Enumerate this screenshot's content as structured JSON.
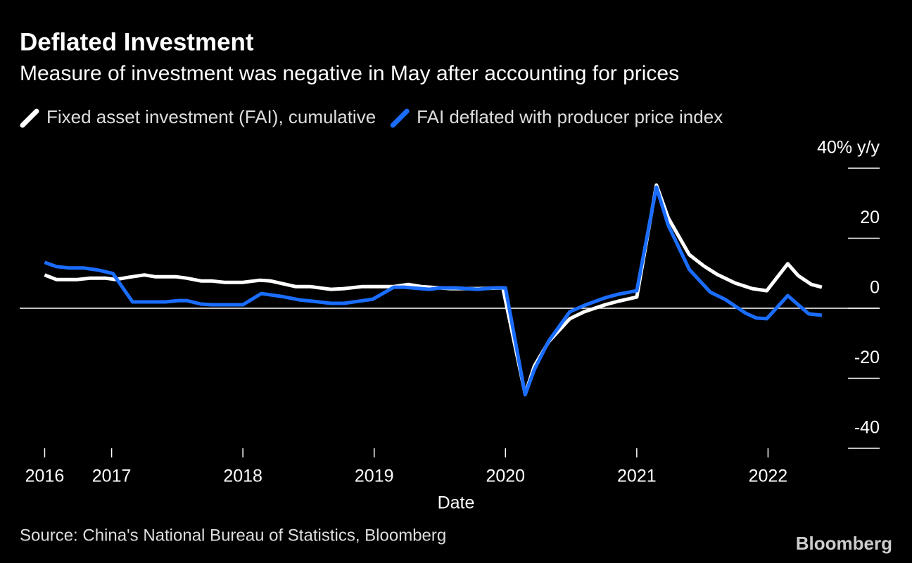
{
  "chart_data": {
    "type": "line",
    "title": "Deflated Investment",
    "subtitle": "Measure of investment was negative in May after accounting for prices",
    "x_label": "Date",
    "source": "Source: China's National Bureau of Statistics, Bloomberg",
    "credit": "Bloomberg",
    "xlim": [
      2016.3,
      2022.85
    ],
    "xticks": [
      {
        "value": 2016.49,
        "label": "2016"
      },
      2017,
      2018,
      2019,
      2020,
      2021,
      2022
    ],
    "ylim": [
      -40,
      40
    ],
    "yticks": [
      {
        "value": 40,
        "label": "40% y/y"
      },
      20,
      0,
      -20,
      -40
    ],
    "series": [
      {
        "name": "Fixed asset investment (FAI), cumulative",
        "color": "#ffffff",
        "x": [
          2016.49,
          2016.58,
          2016.74,
          2016.84,
          2016.95,
          2017.03,
          2017.14,
          2017.25,
          2017.33,
          2017.49,
          2017.57,
          2017.68,
          2017.76,
          2017.86,
          2018.0,
          2018.13,
          2018.21,
          2018.4,
          2018.51,
          2018.67,
          2018.77,
          2018.91,
          2019.15,
          2019.26,
          2019.36,
          2019.58,
          2019.79,
          2019.98,
          2020.15,
          2020.22,
          2020.33,
          2020.49,
          2020.6,
          2020.76,
          2020.86,
          2021.0,
          2021.15,
          2021.24,
          2021.4,
          2021.51,
          2021.61,
          2021.75,
          2021.88,
          2021.99,
          2022.15,
          2022.23,
          2022.33,
          2022.41
        ],
        "values": [
          9.5,
          8.2,
          8.2,
          8.6,
          8.6,
          8.2,
          8.9,
          9.5,
          9,
          9,
          8.6,
          7.8,
          7.8,
          7.4,
          7.4,
          8,
          7.8,
          6.2,
          6.2,
          5.4,
          5.6,
          6.2,
          6.2,
          6.8,
          6.2,
          5.6,
          5.6,
          5.8,
          -24.5,
          -16.5,
          -9.5,
          -3,
          -1,
          1,
          2,
          3.2,
          35.2,
          25.8,
          15.3,
          12.1,
          9.7,
          7.2,
          5.6,
          5,
          12.7,
          9.3,
          6.8,
          6
        ]
      },
      {
        "name": "FAI deflated with producer price index",
        "color": "#1a6dff",
        "x": [
          2016.49,
          2016.58,
          2016.68,
          2016.79,
          2016.9,
          2017.01,
          2017.16,
          2017.27,
          2017.41,
          2017.51,
          2017.57,
          2017.68,
          2017.76,
          2018.0,
          2018.14,
          2018.29,
          2018.43,
          2018.53,
          2018.67,
          2018.77,
          2018.99,
          2019.15,
          2019.23,
          2019.42,
          2019.5,
          2019.63,
          2019.79,
          2019.9,
          2020.0,
          2020.15,
          2020.22,
          2020.33,
          2020.49,
          2020.6,
          2020.76,
          2020.86,
          2021.0,
          2021.15,
          2021.24,
          2021.4,
          2021.56,
          2021.67,
          2021.83,
          2021.91,
          2021.99,
          2022.15,
          2022.31,
          2022.41
        ],
        "values": [
          13.1,
          11.9,
          11.5,
          11.5,
          10.9,
          9.9,
          1.8,
          1.8,
          1.8,
          2.2,
          2.2,
          1.2,
          1,
          1,
          4.2,
          3.4,
          2.4,
          2,
          1.4,
          1.4,
          2.6,
          6,
          6,
          5.4,
          5.8,
          5.8,
          5.4,
          5.8,
          5.8,
          -24.7,
          -17.5,
          -9.3,
          -1,
          0.8,
          3,
          4,
          5,
          34.6,
          23.7,
          11.1,
          4.6,
          2.6,
          -1.4,
          -2.8,
          -3,
          3.6,
          -1.6,
          -2
        ]
      }
    ]
  }
}
